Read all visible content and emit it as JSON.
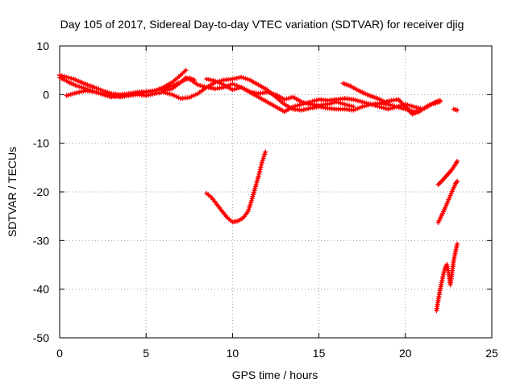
{
  "chart_data": {
    "type": "scatter",
    "title": "Day 105 of 2017, Sidereal Day-to-day VTEC variation (SDTVAR) for receiver djig",
    "xlabel": "GPS time / hours",
    "ylabel": "SDTVAR / TECUs",
    "xlim": [
      0,
      25
    ],
    "ylim": [
      -50,
      10
    ],
    "xticks": [
      0,
      5,
      10,
      15,
      20,
      25
    ],
    "yticks": [
      -50,
      -40,
      -30,
      -20,
      -10,
      0,
      10
    ],
    "xtick_labels": [
      "0",
      "5",
      "10",
      "15",
      "20",
      "25"
    ],
    "ytick_labels": [
      "-50",
      "-40",
      "-30",
      "-20",
      "-10",
      "0",
      "10"
    ],
    "grid": true,
    "marker": "plus",
    "color": "#ff0000",
    "series": [
      {
        "points": [
          [
            0.0,
            4.0
          ],
          [
            0.4,
            3.6
          ],
          [
            0.8,
            3.2
          ],
          [
            1.2,
            2.6
          ],
          [
            1.6,
            2.0
          ],
          [
            2.0,
            1.5
          ],
          [
            2.5,
            0.8
          ],
          [
            3.0,
            0.2
          ],
          [
            3.5,
            0.0
          ],
          [
            4.0,
            0.2
          ],
          [
            4.5,
            0.5
          ],
          [
            5.0,
            0.6
          ],
          [
            5.5,
            0.8
          ],
          [
            6.0,
            1.5
          ],
          [
            6.5,
            2.5
          ],
          [
            7.0,
            4.0
          ],
          [
            7.3,
            5.0
          ]
        ]
      },
      {
        "points": [
          [
            0.0,
            3.5
          ],
          [
            0.3,
            3.0
          ],
          [
            0.6,
            2.4
          ],
          [
            1.0,
            1.8
          ],
          [
            1.5,
            1.2
          ],
          [
            2.0,
            0.6
          ],
          [
            2.5,
            0.0
          ],
          [
            3.0,
            -0.5
          ],
          [
            3.5,
            -0.3
          ],
          [
            4.0,
            0.0
          ],
          [
            4.5,
            0.2
          ],
          [
            5.0,
            0.5
          ],
          [
            5.5,
            0.8
          ],
          [
            6.0,
            1.2
          ],
          [
            6.5,
            1.8
          ],
          [
            7.0,
            2.6
          ],
          [
            7.5,
            3.4
          ],
          [
            7.8,
            3.0
          ]
        ]
      },
      {
        "points": [
          [
            0.4,
            -0.2
          ],
          [
            1.0,
            0.4
          ],
          [
            1.5,
            0.8
          ],
          [
            2.0,
            0.6
          ],
          [
            2.5,
            0.2
          ],
          [
            3.0,
            -0.3
          ],
          [
            3.5,
            -0.5
          ],
          [
            4.0,
            -0.2
          ],
          [
            4.5,
            0.0
          ],
          [
            5.0,
            -0.2
          ],
          [
            5.5,
            0.2
          ],
          [
            6.0,
            0.5
          ],
          [
            6.5,
            0.0
          ],
          [
            7.0,
            -0.8
          ],
          [
            7.5,
            -0.6
          ],
          [
            8.0,
            0.2
          ],
          [
            8.5,
            1.5
          ],
          [
            9.0,
            2.5
          ],
          [
            9.5,
            3.0
          ],
          [
            10.0,
            3.2
          ],
          [
            10.5,
            3.6
          ],
          [
            11.0,
            3.0
          ],
          [
            11.5,
            2.0
          ],
          [
            12.0,
            1.0
          ]
        ]
      },
      {
        "points": [
          [
            6.0,
            0.8
          ],
          [
            6.5,
            1.2
          ],
          [
            7.0,
            2.5
          ],
          [
            7.3,
            3.5
          ],
          [
            7.6,
            3.0
          ],
          [
            8.0,
            2.0
          ],
          [
            8.5,
            1.5
          ],
          [
            9.0,
            1.2
          ],
          [
            9.5,
            1.5
          ],
          [
            10.0,
            2.2
          ],
          [
            10.5,
            1.5
          ],
          [
            11.0,
            0.6
          ],
          [
            11.5,
            0.2
          ],
          [
            12.0,
            0.5
          ],
          [
            12.5,
            0.0
          ],
          [
            13.0,
            -1.0
          ],
          [
            13.5,
            -0.5
          ],
          [
            14.0,
            -1.5
          ],
          [
            14.5,
            -2.0
          ],
          [
            15.0,
            -2.2
          ],
          [
            15.5,
            -2.0
          ],
          [
            16.0,
            -1.5
          ],
          [
            16.5,
            -2.0
          ],
          [
            17.0,
            -2.5
          ]
        ]
      },
      {
        "points": [
          [
            8.5,
            3.2
          ],
          [
            9.0,
            2.8
          ],
          [
            9.5,
            2.0
          ],
          [
            10.0,
            1.0
          ],
          [
            10.5,
            1.5
          ],
          [
            11.0,
            0.5
          ],
          [
            11.5,
            -0.5
          ],
          [
            12.0,
            -1.5
          ],
          [
            12.5,
            -2.5
          ],
          [
            13.0,
            -3.5
          ],
          [
            13.5,
            -2.5
          ],
          [
            14.0,
            -2.0
          ],
          [
            14.5,
            -1.5
          ],
          [
            15.0,
            -1.0
          ],
          [
            15.5,
            -1.2
          ],
          [
            16.0,
            -1.0
          ],
          [
            16.5,
            -0.8
          ],
          [
            17.0,
            -1.0
          ],
          [
            17.5,
            -1.5
          ],
          [
            18.0,
            -2.0
          ],
          [
            18.5,
            -2.5
          ],
          [
            19.0,
            -3.0
          ],
          [
            19.5,
            -2.5
          ],
          [
            20.0,
            -2.0
          ],
          [
            20.5,
            -2.5
          ],
          [
            21.0,
            -3.0
          ],
          [
            21.5,
            -2.0
          ],
          [
            22.0,
            -1.2
          ]
        ]
      },
      {
        "points": [
          [
            12.0,
            1.0
          ],
          [
            12.5,
            -0.5
          ],
          [
            13.0,
            -2.0
          ],
          [
            13.5,
            -3.0
          ],
          [
            14.0,
            -3.2
          ],
          [
            14.5,
            -2.8
          ],
          [
            15.0,
            -2.5
          ],
          [
            15.5,
            -2.8
          ],
          [
            16.0,
            -3.0
          ],
          [
            16.5,
            -3.0
          ],
          [
            17.0,
            -3.2
          ],
          [
            17.5,
            -2.5
          ],
          [
            18.0,
            -2.0
          ],
          [
            18.5,
            -1.8
          ],
          [
            19.0,
            -2.0
          ],
          [
            19.5,
            -2.5
          ],
          [
            20.0,
            -3.0
          ],
          [
            20.5,
            -3.5
          ],
          [
            21.0,
            -3.0
          ],
          [
            21.5,
            -2.0
          ],
          [
            22.0,
            -1.5
          ]
        ]
      },
      {
        "points": [
          [
            16.4,
            2.3
          ],
          [
            16.8,
            1.8
          ],
          [
            17.2,
            1.0
          ],
          [
            17.6,
            0.3
          ],
          [
            18.0,
            -0.3
          ],
          [
            18.4,
            -0.8
          ],
          [
            18.8,
            -1.5
          ],
          [
            19.2,
            -1.2
          ],
          [
            19.6,
            -1.0
          ],
          [
            20.0,
            -2.5
          ],
          [
            20.4,
            -4.0
          ],
          [
            20.8,
            -3.5
          ],
          [
            21.2,
            -2.5
          ],
          [
            21.6,
            -1.8
          ],
          [
            22.0,
            -1.2
          ]
        ]
      },
      {
        "points": [
          [
            22.8,
            -3.0
          ],
          [
            23.0,
            -3.2
          ]
        ]
      },
      {
        "points": [
          [
            8.5,
            -20.3
          ],
          [
            8.8,
            -21.2
          ],
          [
            9.1,
            -22.6
          ],
          [
            9.4,
            -24.0
          ],
          [
            9.7,
            -25.3
          ],
          [
            10.0,
            -26.2
          ],
          [
            10.3,
            -26.0
          ],
          [
            10.6,
            -25.4
          ],
          [
            10.9,
            -24.0
          ],
          [
            11.1,
            -21.8
          ],
          [
            11.3,
            -19.3
          ],
          [
            11.5,
            -16.8
          ],
          [
            11.7,
            -14.0
          ],
          [
            11.9,
            -11.8
          ]
        ]
      },
      {
        "points": [
          [
            21.9,
            -18.5
          ],
          [
            22.1,
            -17.8
          ],
          [
            22.3,
            -17.0
          ],
          [
            22.5,
            -16.2
          ],
          [
            22.7,
            -15.4
          ],
          [
            22.9,
            -14.3
          ],
          [
            23.0,
            -13.7
          ]
        ]
      },
      {
        "points": [
          [
            21.9,
            -26.3
          ],
          [
            22.1,
            -24.8
          ],
          [
            22.3,
            -23.3
          ],
          [
            22.5,
            -21.6
          ],
          [
            22.7,
            -19.9
          ],
          [
            22.9,
            -18.3
          ],
          [
            23.0,
            -17.8
          ]
        ]
      },
      {
        "points": [
          [
            21.8,
            -44.4
          ],
          [
            21.9,
            -42.3
          ],
          [
            22.0,
            -40.3
          ],
          [
            22.1,
            -38.6
          ],
          [
            22.2,
            -36.9
          ],
          [
            22.3,
            -35.6
          ],
          [
            22.4,
            -34.9
          ],
          [
            22.5,
            -36.6
          ],
          [
            22.6,
            -39.1
          ],
          [
            22.7,
            -36.6
          ],
          [
            22.8,
            -34.0
          ],
          [
            22.9,
            -32.3
          ],
          [
            23.0,
            -30.7
          ]
        ]
      }
    ]
  }
}
